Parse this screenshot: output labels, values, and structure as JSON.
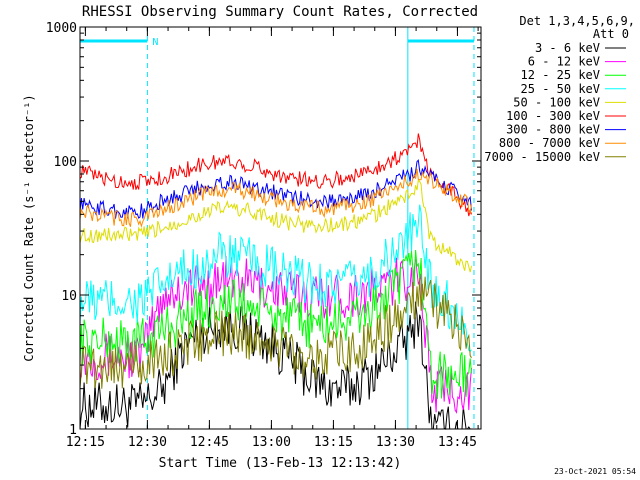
{
  "chart_data": {
    "type": "line",
    "title": "RHESSI Observing Summary Count Rates, Corrected",
    "xlabel": "Start Time (13-Feb-13 12:13:42)",
    "ylabel": "Corrected Count Rate (s⁻¹ detector⁻¹)",
    "y_scale": "log",
    "ylim": [
      1,
      1000
    ],
    "xlim_minutes_after_1213": [
      0,
      40
    ],
    "x_ticks": [
      {
        "label": "12:15",
        "t": 1.3
      },
      {
        "label": "12:30",
        "t": 16.3
      },
      {
        "label": "12:45",
        "t": 31.3
      },
      {
        "label": "13:00",
        "t": 46.3
      },
      {
        "label": "13:15",
        "t": 61.3
      },
      {
        "label": "13:30",
        "t": 76.3
      },
      {
        "label": "13:45",
        "t": 91.3
      }
    ],
    "y_ticks": [
      {
        "label": "1",
        "v": 1
      },
      {
        "label": "10",
        "v": 10
      },
      {
        "label": "100",
        "v": 100
      },
      {
        "label": "1000",
        "v": 1000
      }
    ],
    "grid": false,
    "legend_position": "top-right outside",
    "legend_header": [
      "Det 1,3,4,5,6,9,",
      "Att 0"
    ],
    "timestamp": "23-Oct-2021 05:54",
    "annotations": {
      "flag_label": "N",
      "flag_color": "#00e5ff",
      "vertical_markers_t": [
        16.3,
        79.3,
        95.3
      ]
    },
    "x_time_points": [
      0,
      5,
      10,
      15,
      20,
      25,
      30,
      35,
      40,
      45,
      50,
      55,
      60,
      65,
      70,
      75,
      80,
      82,
      85,
      90,
      95
    ],
    "series": [
      {
        "name": "3 - 6 keV",
        "color": "#000000",
        "values": [
          1.5,
          1.5,
          1.5,
          1.5,
          2.0,
          4.0,
          5.5,
          6.0,
          5.5,
          4.5,
          3.5,
          2.5,
          2.0,
          2.0,
          2.5,
          3.5,
          5.0,
          7.5,
          1.0,
          1.0,
          1.0
        ]
      },
      {
        "name": "6 - 12 keV",
        "color": "#ff00ff",
        "values": [
          3.5,
          3.5,
          3.5,
          3.5,
          10.0,
          11.0,
          12.0,
          13.0,
          12.5,
          11.5,
          10.5,
          10.0,
          10.0,
          10.0,
          10.5,
          12.0,
          14.0,
          16.0,
          2.0,
          2.0,
          2.0
        ]
      },
      {
        "name": "12 - 25 keV",
        "color": "#00ff00",
        "values": [
          4.5,
          4.5,
          4.5,
          4.5,
          5.5,
          6.5,
          8.0,
          9.0,
          8.5,
          7.5,
          6.5,
          6.0,
          6.0,
          6.5,
          7.5,
          10.0,
          15.0,
          20.0,
          2.5,
          2.5,
          2.5
        ]
      },
      {
        "name": "25 - 50 keV",
        "color": "#00ffff",
        "values": [
          9.0,
          9.0,
          9.0,
          9.0,
          12.0,
          14.5,
          17.5,
          20.0,
          18.5,
          16.0,
          13.5,
          12.5,
          12.0,
          12.0,
          14.0,
          19.0,
          28.0,
          35.0,
          12.0,
          8.0,
          5.0
        ]
      },
      {
        "name": "50 - 100 keV",
        "color": "#dddd00",
        "values": [
          28.0,
          28.0,
          28.0,
          28.0,
          32.0,
          36.0,
          41.0,
          45.0,
          43.0,
          39.0,
          35.0,
          33.0,
          33.0,
          34.0,
          38.0,
          46.0,
          58.0,
          70.0,
          25.0,
          20.0,
          15.0
        ]
      },
      {
        "name": "100 - 300 keV",
        "color": "#ff0000",
        "values": [
          85.0,
          75.0,
          70.0,
          70.0,
          75.0,
          85.0,
          95.0,
          100.0,
          95.0,
          85.0,
          75.0,
          72.0,
          72.0,
          75.0,
          85.0,
          100.0,
          120.0,
          150.0,
          75.0,
          60.0,
          40.0
        ]
      },
      {
        "name": "300 - 800 keV",
        "color": "#0000ff",
        "values": [
          48.0,
          44.0,
          42.0,
          42.0,
          50.0,
          57.0,
          65.0,
          70.0,
          67.0,
          61.0,
          55.0,
          51.0,
          50.0,
          52.0,
          57.0,
          68.0,
          80.0,
          90.0,
          75.0,
          60.0,
          48.0
        ]
      },
      {
        "name": "800 - 7000 keV",
        "color": "#ff8c00",
        "values": [
          42.0,
          39.0,
          37.0,
          37.0,
          43.0,
          50.0,
          57.0,
          62.0,
          59.0,
          54.0,
          48.0,
          45.0,
          44.0,
          46.0,
          51.0,
          60.0,
          72.0,
          82.0,
          72.0,
          58.0,
          45.0
        ]
      },
      {
        "name": "7000 - 15000 keV",
        "color": "#808000",
        "values": [
          3.0,
          3.0,
          3.0,
          3.0,
          3.5,
          4.0,
          4.8,
          5.2,
          5.0,
          4.5,
          4.0,
          3.5,
          3.5,
          3.8,
          4.5,
          6.0,
          8.0,
          10.0,
          9.0,
          6.5,
          4.0
        ]
      }
    ]
  }
}
